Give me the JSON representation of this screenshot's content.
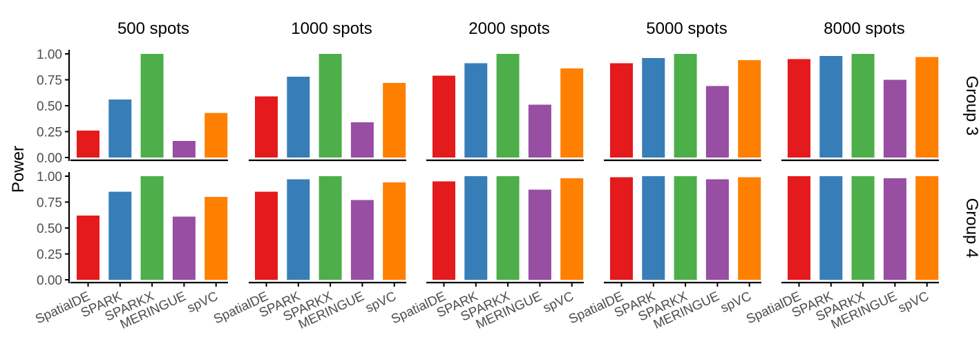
{
  "chart_data": {
    "type": "bar",
    "ylabel": "Power",
    "ylim": [
      0,
      1
    ],
    "yticks": [
      "0.00",
      "0.25",
      "0.50",
      "0.75",
      "1.00"
    ],
    "categories": [
      "SpatialDE",
      "SPARK",
      "SPARKX",
      "MERINGUE",
      "spVC"
    ],
    "colors": {
      "SpatialDE": "#e41a1c",
      "SPARK": "#377eb8",
      "SPARKX": "#4daf4a",
      "MERINGUE": "#984ea3",
      "spVC": "#ff7f00"
    },
    "columns": [
      "500 spots",
      "1000 spots",
      "2000 spots",
      "5000 spots",
      "8000 spots"
    ],
    "rows": [
      "Group 3",
      "Group 4"
    ],
    "panels": [
      [
        {
          "column": "500 spots",
          "row": "Group 3",
          "values": [
            0.26,
            0.56,
            1.0,
            0.16,
            0.43
          ]
        },
        {
          "column": "1000 spots",
          "row": "Group 3",
          "values": [
            0.59,
            0.78,
            1.0,
            0.34,
            0.72
          ]
        },
        {
          "column": "2000 spots",
          "row": "Group 3",
          "values": [
            0.79,
            0.91,
            1.0,
            0.51,
            0.86
          ]
        },
        {
          "column": "5000 spots",
          "row": "Group 3",
          "values": [
            0.91,
            0.96,
            1.0,
            0.69,
            0.94
          ]
        },
        {
          "column": "8000 spots",
          "row": "Group 3",
          "values": [
            0.95,
            0.98,
            1.0,
            0.75,
            0.97
          ]
        }
      ],
      [
        {
          "column": "500 spots",
          "row": "Group 4",
          "values": [
            0.62,
            0.85,
            1.0,
            0.61,
            0.8
          ]
        },
        {
          "column": "1000 spots",
          "row": "Group 4",
          "values": [
            0.85,
            0.97,
            1.0,
            0.77,
            0.94
          ]
        },
        {
          "column": "2000 spots",
          "row": "Group 4",
          "values": [
            0.95,
            1.0,
            1.0,
            0.87,
            0.98
          ]
        },
        {
          "column": "5000 spots",
          "row": "Group 4",
          "values": [
            0.99,
            1.0,
            1.0,
            0.97,
            0.99
          ]
        },
        {
          "column": "8000 spots",
          "row": "Group 4",
          "values": [
            1.0,
            1.0,
            1.0,
            0.98,
            1.0
          ]
        }
      ]
    ]
  }
}
